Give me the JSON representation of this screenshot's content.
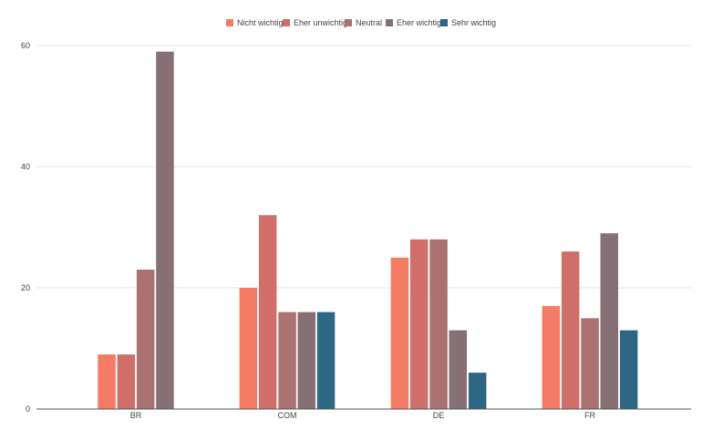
{
  "chart_data": {
    "type": "bar",
    "categories": [
      "BR",
      "COM",
      "DE",
      "FR"
    ],
    "series": [
      {
        "name": "Nicht wichtig",
        "color": "#f47c65",
        "values": [
          9,
          20,
          25,
          17
        ]
      },
      {
        "name": "Eher unwichtig",
        "color": "#d06f69",
        "values": [
          9,
          32,
          28,
          26
        ]
      },
      {
        "name": "Neutral",
        "color": "#ab7271",
        "values": [
          23,
          16,
          28,
          15
        ]
      },
      {
        "name": "Eher wichtig",
        "color": "#867076",
        "values": [
          59,
          16,
          13,
          29
        ]
      },
      {
        "name": "Sehr wichtig",
        "color": "#2e6784",
        "values": [
          null,
          16,
          6,
          13
        ]
      }
    ],
    "yticks": [
      0,
      20,
      40,
      60
    ],
    "ylim": [
      0,
      60
    ],
    "grid": true,
    "legend_position": "top-center",
    "title": "",
    "xlabel": "",
    "ylabel": ""
  }
}
